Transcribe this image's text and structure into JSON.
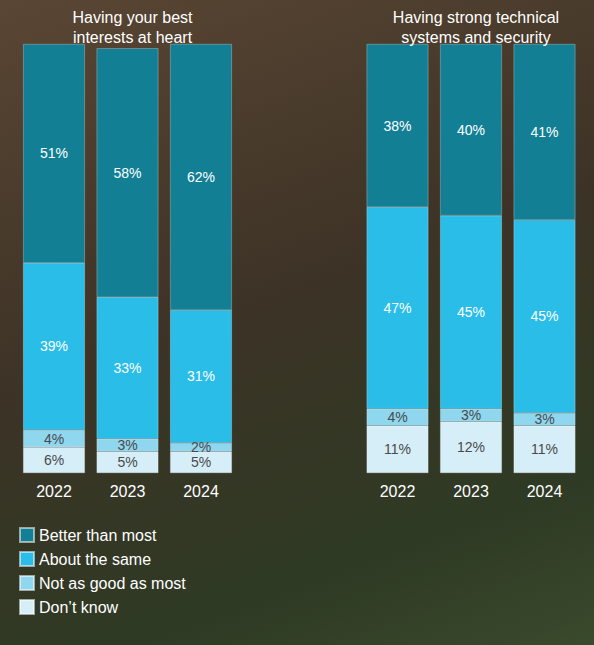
{
  "chart_data": [
    {
      "type": "bar",
      "title": "Having your best interests at heart",
      "categories": [
        "2022",
        "2023",
        "2024"
      ],
      "stacked": true,
      "data_labels": true,
      "tick_labels": "x",
      "ylim": [
        0,
        100
      ],
      "legend": "bottom-left",
      "series": [
        {
          "name": "Better than most",
          "color": "#127f95",
          "values": [
            51,
            58,
            62
          ],
          "value_labels": [
            "51%",
            "58%",
            "62%"
          ]
        },
        {
          "name": "About the same",
          "color": "#29bde8",
          "values": [
            39,
            33,
            31
          ],
          "value_labels": [
            "39%",
            "33%",
            "31%"
          ]
        },
        {
          "name": "Not as good as most",
          "color": "#8fd6ef",
          "values": [
            4,
            3,
            2
          ],
          "value_labels": [
            "4%",
            "3%",
            "2%"
          ]
        },
        {
          "name": "Don’t know",
          "color": "#d6eef8",
          "values": [
            6,
            5,
            5
          ],
          "value_labels": [
            "6%",
            "5%",
            "5%"
          ]
        }
      ]
    },
    {
      "type": "bar",
      "title": "Having strong technical systems and security",
      "categories": [
        "2022",
        "2023",
        "2024"
      ],
      "stacked": true,
      "data_labels": true,
      "tick_labels": "x",
      "ylim": [
        0,
        100
      ],
      "series": [
        {
          "name": "Better than most",
          "color": "#127f95",
          "values": [
            38,
            40,
            41
          ],
          "value_labels": [
            "38%",
            "40%",
            "41%"
          ]
        },
        {
          "name": "About the same",
          "color": "#29bde8",
          "values": [
            47,
            45,
            45
          ],
          "value_labels": [
            "47%",
            "45%",
            "45%"
          ]
        },
        {
          "name": "Not as good as most",
          "color": "#8fd6ef",
          "values": [
            4,
            3,
            3
          ],
          "value_labels": [
            "4%",
            "3%",
            "3%"
          ]
        },
        {
          "name": "Don’t know",
          "color": "#d6eef8",
          "values": [
            11,
            12,
            11
          ],
          "value_labels": [
            "11%",
            "12%",
            "11%"
          ]
        }
      ]
    }
  ]
}
